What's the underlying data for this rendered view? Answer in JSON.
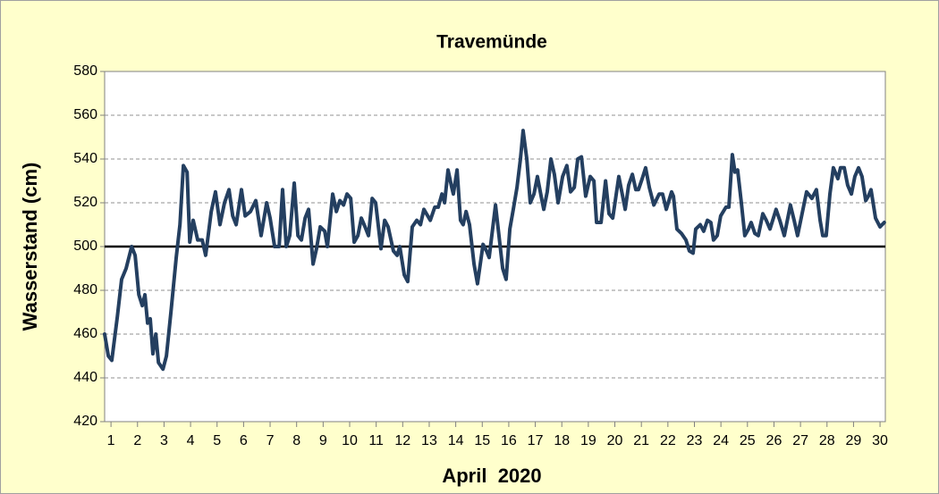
{
  "chart_data": {
    "type": "line",
    "title": "Travemünde",
    "x_label": "April  2020",
    "y_label": "Wasserstand (cm)",
    "xlim": [
      0.76,
      30.2
    ],
    "xticks": [
      1,
      2,
      3,
      4,
      5,
      6,
      7,
      8,
      9,
      10,
      11,
      12,
      13,
      14,
      15,
      16,
      17,
      18,
      19,
      20,
      21,
      22,
      23,
      24,
      25,
      26,
      27,
      28,
      29,
      30
    ],
    "ylim": [
      420,
      580
    ],
    "yticks": [
      420,
      440,
      460,
      480,
      500,
      520,
      540,
      560,
      580
    ],
    "grid": true,
    "reference_line": 500,
    "series": [
      {
        "color": "#243f60",
        "x": [
          0.76,
          0.9,
          1.03,
          1.24,
          1.4,
          1.57,
          1.78,
          1.91,
          2.05,
          2.18,
          2.28,
          2.38,
          2.48,
          2.58,
          2.69,
          2.79,
          2.96,
          3.09,
          3.26,
          3.46,
          3.6,
          3.73,
          3.87,
          3.97,
          4.1,
          4.27,
          4.44,
          4.57,
          4.78,
          4.94,
          5.11,
          5.28,
          5.45,
          5.59,
          5.72,
          5.92,
          6.06,
          6.26,
          6.46,
          6.66,
          6.87,
          7.0,
          7.17,
          7.34,
          7.47,
          7.61,
          7.74,
          7.91,
          8.05,
          8.18,
          8.32,
          8.45,
          8.62,
          8.75,
          8.89,
          9.06,
          9.16,
          9.36,
          9.5,
          9.63,
          9.77,
          9.9,
          10.04,
          10.17,
          10.31,
          10.44,
          10.58,
          10.71,
          10.85,
          10.98,
          11.18,
          11.32,
          11.45,
          11.65,
          11.79,
          11.89,
          12.06,
          12.19,
          12.36,
          12.53,
          12.67,
          12.8,
          13.04,
          13.21,
          13.34,
          13.48,
          13.58,
          13.71,
          13.85,
          13.91,
          14.05,
          14.18,
          14.28,
          14.39,
          14.52,
          14.69,
          14.82,
          15.03,
          15.16,
          15.26,
          15.5,
          15.63,
          15.77,
          15.9,
          16.04,
          16.17,
          16.31,
          16.44,
          16.54,
          16.68,
          16.81,
          16.95,
          17.08,
          17.22,
          17.32,
          17.45,
          17.59,
          17.72,
          17.86,
          18.03,
          18.19,
          18.33,
          18.47,
          18.6,
          18.74,
          18.9,
          19.07,
          19.21,
          19.31,
          19.48,
          19.65,
          19.78,
          19.92,
          20.15,
          20.39,
          20.52,
          20.66,
          20.79,
          20.89,
          21.03,
          21.16,
          21.3,
          21.47,
          21.67,
          21.8,
          21.94,
          22.14,
          22.21,
          22.34,
          22.51,
          22.68,
          22.81,
          22.95,
          23.05,
          23.22,
          23.35,
          23.49,
          23.62,
          23.72,
          23.86,
          23.99,
          24.19,
          24.3,
          24.43,
          24.53,
          24.63,
          24.77,
          24.9,
          25.04,
          25.14,
          25.28,
          25.41,
          25.58,
          25.71,
          25.85,
          26.08,
          26.22,
          26.39,
          26.62,
          26.76,
          26.89,
          27.06,
          27.23,
          27.43,
          27.6,
          27.74,
          27.84,
          27.97,
          28.11,
          28.24,
          28.41,
          28.51,
          28.65,
          28.78,
          28.92,
          29.05,
          29.19,
          29.32,
          29.46,
          29.56,
          29.66,
          29.83,
          30.0,
          30.16
        ],
        "values": [
          460,
          450,
          448,
          468,
          485,
          490,
          500,
          496,
          478,
          473,
          478,
          465,
          467,
          451,
          460,
          447,
          444,
          450,
          470,
          495,
          510,
          537,
          534,
          502,
          512,
          503,
          503,
          496,
          516,
          525,
          510,
          520,
          526,
          514,
          510,
          526,
          514,
          516,
          521,
          505,
          520,
          513,
          500,
          500,
          526,
          500,
          505,
          529,
          505,
          503,
          513,
          517,
          492,
          499,
          509,
          507,
          500,
          524,
          516,
          521,
          519,
          524,
          522,
          502,
          505,
          513,
          509,
          505,
          522,
          520,
          499,
          512,
          509,
          498,
          496,
          500,
          487,
          484,
          509,
          512,
          510,
          517,
          512,
          518,
          518,
          524,
          520,
          535,
          527,
          524,
          535,
          512,
          510,
          516,
          510,
          492,
          483,
          501,
          498,
          495,
          519,
          505,
          490,
          485,
          508,
          517,
          527,
          540,
          553,
          540,
          520,
          524,
          532,
          523,
          517,
          525,
          540,
          533,
          520,
          532,
          537,
          525,
          527,
          540,
          541,
          523,
          532,
          530,
          511,
          511,
          530,
          515,
          513,
          532,
          517,
          528,
          533,
          526,
          526,
          531,
          536,
          527,
          519,
          524,
          524,
          517,
          525,
          523,
          508,
          506,
          503,
          498,
          497,
          508,
          510,
          507,
          512,
          511,
          503,
          505,
          514,
          518,
          518,
          542,
          534,
          535,
          520,
          505,
          508,
          511,
          506,
          505,
          515,
          512,
          508,
          517,
          512,
          505,
          519,
          512,
          505,
          515,
          525,
          522,
          526,
          512,
          505,
          505,
          524,
          536,
          531,
          536,
          536,
          528,
          524,
          532,
          536,
          532,
          521,
          523,
          526,
          513,
          509,
          511
        ]
      }
    ]
  }
}
